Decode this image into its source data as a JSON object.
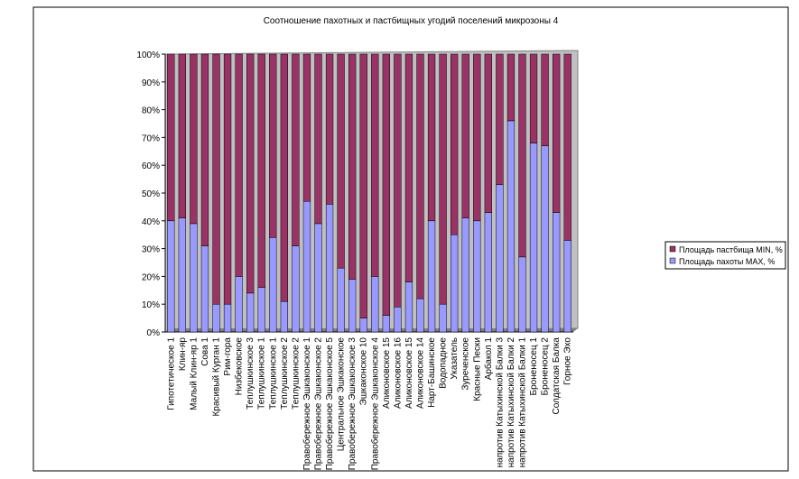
{
  "chart_data": {
    "type": "stacked_bar_100",
    "title": "Соотношение пахотных и пастбищных угодий посел​ений микрозоны 4",
    "categories": [
      "Гипотетическое 1",
      "Клин-яр",
      "Малый Клин-яр 1",
      "Сова 1",
      "Красивый Курган 1",
      "Рим-гора",
      "Низбековское",
      "Теплушкинское 3",
      "Теплушкинское 1",
      "Теплушкинское 1",
      "Теплушкинское 2",
      "Теплушкинское 2",
      "Правобережное Эшкаконское 1",
      "Правобережное Эшкаконское 2",
      "Правобережное Эшкаконское 5",
      "Центральное Эшкаконское",
      "Правобережное Эшкаконское 3",
      "Эшкаконское 10",
      "Правобережное Эшкаконское 4",
      "Аликоновское 15",
      "Аликоновское 16",
      "Аликоновское 15",
      "Аликоновское 14",
      "Нарт-Башинское",
      "Водопадное",
      "Указатель",
      "Зуреченское",
      "Красные Пески",
      "Арбакол 1",
      "напротив Катыхинской Балки 3",
      "напротив Катыхинской Балки 2",
      "напротив Катыхинской Балки 1",
      "Броненосец 1",
      "Броненосец 2",
      "Солдатская Балка",
      "Горное Эхо"
    ],
    "series": [
      {
        "name": "Площадь пахоты MAX, %",
        "color": "#9999ff",
        "values": [
          40,
          41,
          39,
          31,
          10,
          10,
          20,
          14,
          16,
          34,
          11,
          31,
          47,
          39,
          46,
          23,
          19,
          5,
          20,
          6,
          9,
          18,
          12,
          40,
          10,
          35,
          41,
          40,
          43,
          53,
          76,
          27,
          68,
          67,
          43,
          33
        ]
      },
      {
        "name": "Площадь пастбища MIN, %",
        "color": "#993366",
        "values": [
          60,
          59,
          61,
          69,
          90,
          90,
          80,
          86,
          84,
          66,
          89,
          69,
          53,
          61,
          54,
          77,
          81,
          95,
          80,
          94,
          91,
          82,
          88,
          60,
          90,
          65,
          59,
          60,
          57,
          47,
          24,
          73,
          32,
          33,
          57,
          67
        ]
      }
    ],
    "ylim": [
      0,
      100
    ],
    "yticks": [
      {
        "value": 0,
        "label": "0%"
      },
      {
        "value": 10,
        "label": "10%"
      },
      {
        "value": 20,
        "label": "20%"
      },
      {
        "value": 30,
        "label": "30%"
      },
      {
        "value": 40,
        "label": "40%"
      },
      {
        "value": 50,
        "label": "50%"
      },
      {
        "value": 60,
        "label": "60%"
      },
      {
        "value": 70,
        "label": "70%"
      },
      {
        "value": 80,
        "label": "80%"
      },
      {
        "value": 90,
        "label": "90%"
      },
      {
        "value": 100,
        "label": "100%"
      }
    ],
    "legend": "right"
  }
}
